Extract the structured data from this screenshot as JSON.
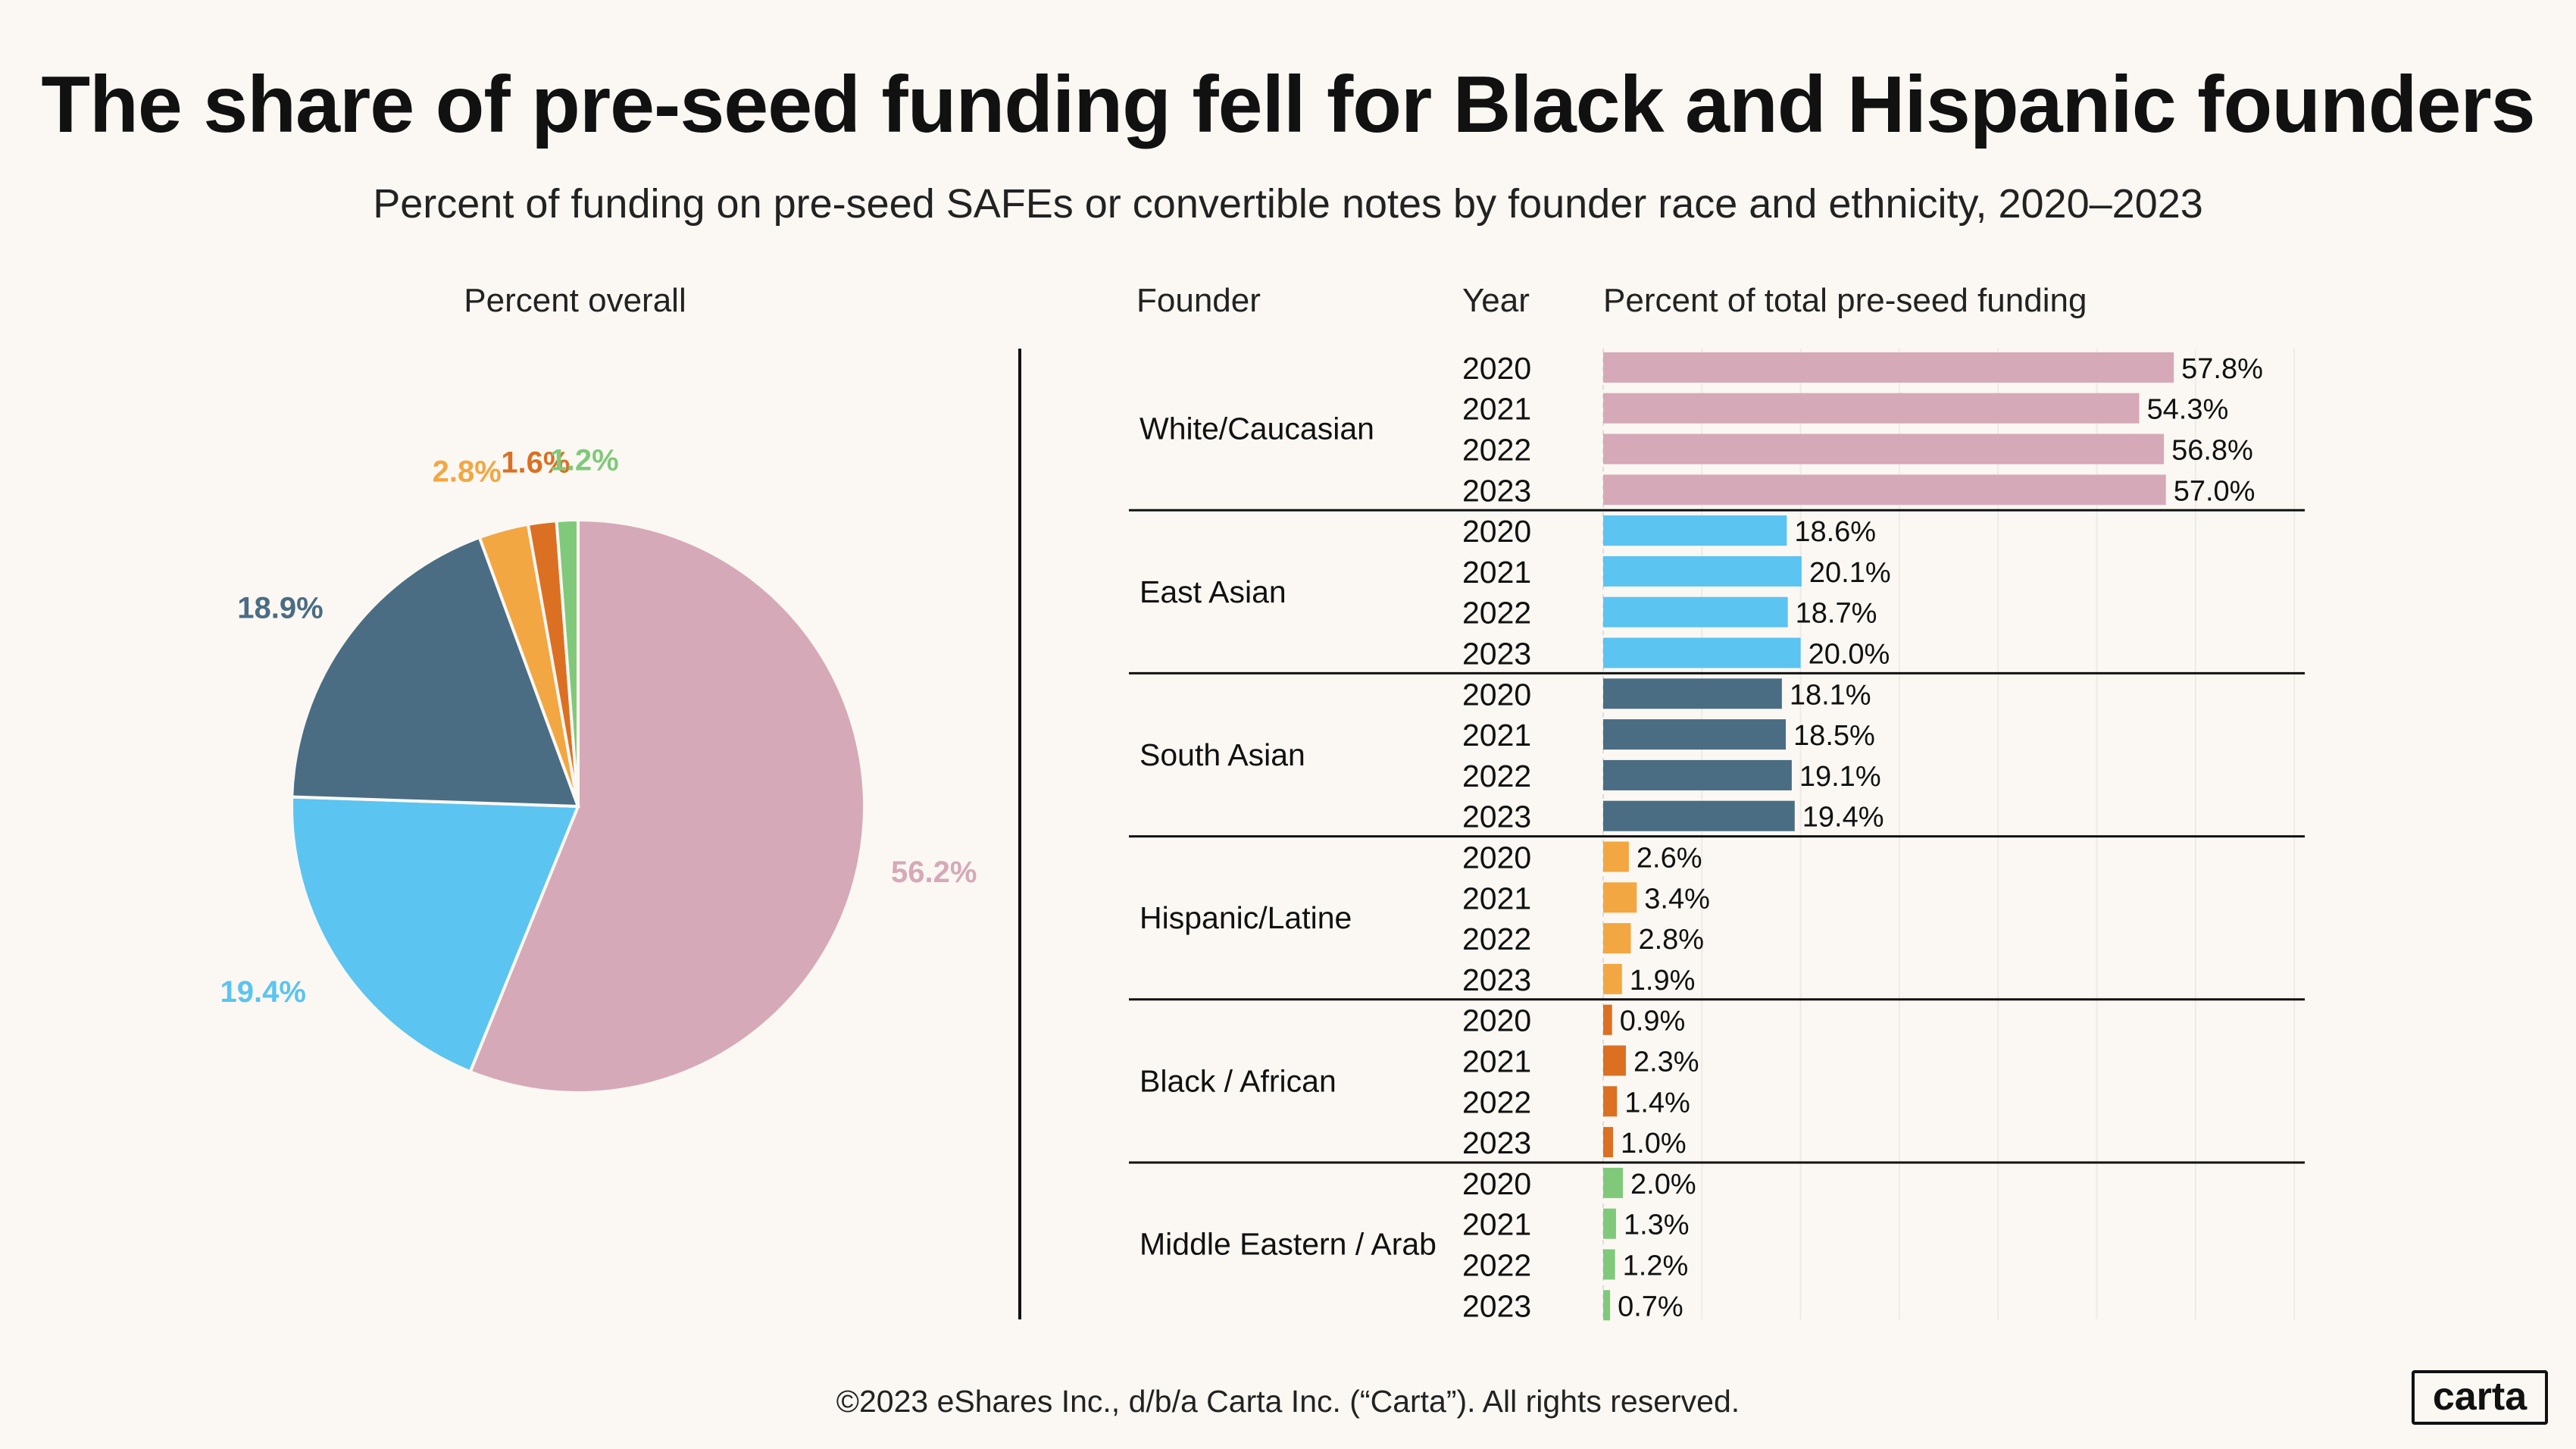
{
  "title": "The share of pre-seed funding fell for Black and Hispanic founders",
  "subtitle": "Percent of funding on pre-seed SAFEs or convertible notes by founder race and ethnicity, 2020–2023",
  "footer": "©2023 eShares Inc., d/b/a Carta Inc. (“Carta”). All rights reserved.",
  "logo": "carta",
  "colors": {
    "background": "#fbf8f3",
    "White/Caucasian": "#d6a9b8",
    "East Asian": "#5bc4f1",
    "South Asian": "#4a6d84",
    "Hispanic/Latine": "#f2a742",
    "Black / African": "#db7023",
    "Middle Eastern / Arab": "#80c97b"
  },
  "chart_data": [
    {
      "type": "pie",
      "title": "Percent overall",
      "labels": [
        "White/Caucasian",
        "East Asian",
        "South Asian",
        "Hispanic/Latine",
        "Black / African",
        "Middle Eastern / Arab"
      ],
      "values": [
        56.2,
        19.4,
        18.9,
        2.8,
        1.6,
        1.2
      ],
      "value_labels": [
        "56.2%",
        "19.4%",
        "18.9%",
        "2.8%",
        "1.6%",
        "1.2%"
      ],
      "start": "top",
      "direction": "clockwise"
    },
    {
      "type": "bar",
      "orientation": "horizontal",
      "column_headers": [
        "Founder",
        "Year",
        "Percent of total pre-seed funding"
      ],
      "xlim": [
        0,
        70
      ],
      "grid": true,
      "groups": [
        {
          "name": "White/Caucasian",
          "years": [
            "2020",
            "2021",
            "2022",
            "2023"
          ],
          "values": [
            57.8,
            54.3,
            56.8,
            57.0
          ],
          "labels": [
            "57.8%",
            "54.3%",
            "56.8%",
            "57.0%"
          ]
        },
        {
          "name": "East Asian",
          "years": [
            "2020",
            "2021",
            "2022",
            "2023"
          ],
          "values": [
            18.6,
            20.1,
            18.7,
            20.0
          ],
          "labels": [
            "18.6%",
            "20.1%",
            "18.7%",
            "20.0%"
          ]
        },
        {
          "name": "South Asian",
          "years": [
            "2020",
            "2021",
            "2022",
            "2023"
          ],
          "values": [
            18.1,
            18.5,
            19.1,
            19.4
          ],
          "labels": [
            "18.1%",
            "18.5%",
            "19.1%",
            "19.4%"
          ]
        },
        {
          "name": "Hispanic/Latine",
          "years": [
            "2020",
            "2021",
            "2022",
            "2023"
          ],
          "values": [
            2.6,
            3.4,
            2.8,
            1.9
          ],
          "labels": [
            "2.6%",
            "3.4%",
            "2.8%",
            "1.9%"
          ]
        },
        {
          "name": "Black / African",
          "years": [
            "2020",
            "2021",
            "2022",
            "2023"
          ],
          "values": [
            0.9,
            2.3,
            1.4,
            1.0
          ],
          "labels": [
            "0.9%",
            "2.3%",
            "1.4%",
            "1.0%"
          ]
        },
        {
          "name": "Middle Eastern / Arab",
          "years": [
            "2020",
            "2021",
            "2022",
            "2023"
          ],
          "values": [
            2.0,
            1.3,
            1.2,
            0.7
          ],
          "labels": [
            "2.0%",
            "1.3%",
            "1.2%",
            "0.7%"
          ]
        }
      ]
    }
  ]
}
